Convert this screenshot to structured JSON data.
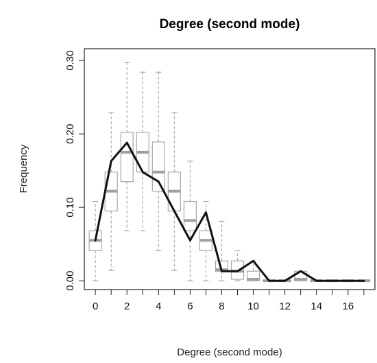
{
  "chart_data": {
    "type": "line",
    "title": "Degree (second mode)",
    "xlabel": "Degree (second mode)",
    "ylabel": "Frequency",
    "xlim": [
      -0.7,
      17.7
    ],
    "ylim": [
      -0.012,
      0.316
    ],
    "x_ticks": [
      0,
      2,
      4,
      6,
      8,
      10,
      12,
      14,
      16
    ],
    "x_tick_labels": [
      "0",
      "2",
      "4",
      "6",
      "8",
      "10",
      "12",
      "14",
      "16"
    ],
    "y_ticks": [
      0.0,
      0.1,
      0.2,
      0.3
    ],
    "y_tick_labels": [
      "0.00",
      "0.10",
      "0.20",
      "0.30"
    ],
    "grid": false,
    "series": [
      {
        "type": "line",
        "color": "#111111",
        "x": [
          0,
          1,
          2,
          3,
          4,
          5,
          6,
          7,
          8,
          9,
          10,
          11,
          12,
          13,
          14,
          15,
          16,
          17
        ],
        "values": [
          0.055,
          0.163,
          0.188,
          0.148,
          0.135,
          0.095,
          0.055,
          0.093,
          0.013,
          0.013,
          0.027,
          0.0,
          0.0,
          0.013,
          0.0,
          0.0,
          0.0,
          0.0
        ]
      },
      {
        "type": "boxplot",
        "color": "#aaaaaa",
        "x": [
          0,
          1,
          2,
          3,
          4,
          5,
          6,
          7,
          8,
          9,
          10,
          11,
          12,
          13,
          14,
          15,
          16,
          17
        ],
        "median": [
          0.055,
          0.122,
          0.175,
          0.175,
          0.148,
          0.122,
          0.082,
          0.055,
          0.015,
          0.013,
          0.002,
          0.0,
          0.0,
          0.002,
          0.0,
          0.0,
          0.0,
          0.0
        ],
        "q1": [
          0.041,
          0.095,
          0.135,
          0.148,
          0.122,
          0.095,
          0.068,
          0.041,
          0.013,
          0.002,
          0.0,
          0.0,
          0.0,
          0.0,
          0.0,
          0.0,
          0.0,
          0.0
        ],
        "q3": [
          0.068,
          0.148,
          0.202,
          0.202,
          0.189,
          0.148,
          0.108,
          0.068,
          0.027,
          0.027,
          0.013,
          0.0,
          0.0,
          0.013,
          0.0,
          0.0,
          0.0,
          0.0
        ],
        "whisker_low": [
          0.0,
          0.014,
          0.068,
          0.068,
          0.041,
          0.014,
          0.0,
          0.0,
          0.0,
          0.0,
          0.0,
          0.0,
          0.0,
          0.0,
          0.0,
          0.0,
          0.0,
          0.0
        ],
        "whisker_high": [
          0.108,
          0.229,
          0.297,
          0.284,
          0.284,
          0.229,
          0.163,
          0.108,
          0.081,
          0.041,
          0.027,
          0.0,
          0.0,
          0.0,
          0.0,
          0.0,
          0.0,
          0.0
        ]
      }
    ]
  }
}
